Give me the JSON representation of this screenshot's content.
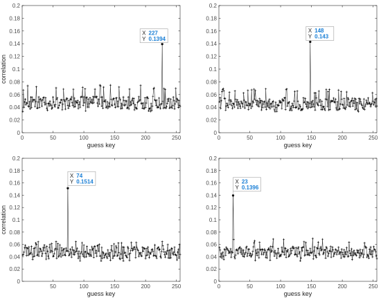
{
  "chart_data": [
    {
      "type": "line",
      "xlabel": "guess key",
      "ylabel": "correlation",
      "xlim": [
        0,
        256
      ],
      "ylim": [
        0,
        0.2
      ],
      "xticks": [
        0,
        50,
        100,
        150,
        200,
        250
      ],
      "yticks": [
        0,
        0.02,
        0.04,
        0.06,
        0.08,
        0.1,
        0.12,
        0.14,
        0.16,
        0.18,
        0.2
      ],
      "grid": false,
      "marker": "asterisk",
      "series": [
        {
          "x_range": [
            1,
            256
          ],
          "baseline": 0.047,
          "noise_range": [
            0.033,
            0.075
          ],
          "peak_x": 227,
          "peak_y": 0.1394
        }
      ],
      "datatip": {
        "x_label": "X",
        "x_value": "227",
        "y_label": "Y",
        "y_value": "0.1394"
      }
    },
    {
      "type": "line",
      "xlabel": "guess key",
      "ylabel": "",
      "xlim": [
        0,
        256
      ],
      "ylim": [
        0,
        0.2
      ],
      "xticks": [
        0,
        50,
        100,
        150,
        200,
        250
      ],
      "yticks": [
        0,
        0.02,
        0.04,
        0.06,
        0.08,
        0.1,
        0.12,
        0.14,
        0.16,
        0.18,
        0.2
      ],
      "grid": false,
      "marker": "asterisk",
      "series": [
        {
          "x_range": [
            1,
            256
          ],
          "baseline": 0.045,
          "noise_range": [
            0.033,
            0.07
          ],
          "peak_x": 148,
          "peak_y": 0.143
        }
      ],
      "datatip": {
        "x_label": "X",
        "x_value": "148",
        "y_label": "Y",
        "y_value": "0.143"
      }
    },
    {
      "type": "line",
      "xlabel": "guess key",
      "ylabel": "correlation",
      "xlim": [
        0,
        256
      ],
      "ylim": [
        0,
        0.2
      ],
      "xticks": [
        50,
        100,
        150,
        200,
        250
      ],
      "yticks": [
        0,
        0.02,
        0.04,
        0.06,
        0.08,
        0.1,
        0.12,
        0.14,
        0.16,
        0.18,
        0.2
      ],
      "grid": false,
      "marker": "asterisk",
      "series": [
        {
          "x_range": [
            1,
            256
          ],
          "baseline": 0.047,
          "noise_range": [
            0.033,
            0.065
          ],
          "peak_x": 74,
          "peak_y": 0.1514
        }
      ],
      "datatip": {
        "x_label": "X",
        "x_value": "74",
        "y_label": "Y",
        "y_value": "0.1514"
      }
    },
    {
      "type": "line",
      "xlabel": "guess key",
      "ylabel": "",
      "xlim": [
        0,
        256
      ],
      "ylim": [
        0,
        0.2
      ],
      "xticks": [
        0,
        50,
        100,
        150,
        200,
        250
      ],
      "yticks": [
        0,
        0.02,
        0.04,
        0.06,
        0.08,
        0.1,
        0.12,
        0.14,
        0.16,
        0.18,
        0.2
      ],
      "grid": false,
      "marker": "asterisk",
      "series": [
        {
          "x_range": [
            1,
            256
          ],
          "baseline": 0.047,
          "noise_range": [
            0.033,
            0.07
          ],
          "peak_x": 23,
          "peak_y": 0.1396
        }
      ],
      "datatip": {
        "x_label": "X",
        "x_value": "23",
        "y_label": "Y",
        "y_value": "0.1396"
      }
    }
  ]
}
